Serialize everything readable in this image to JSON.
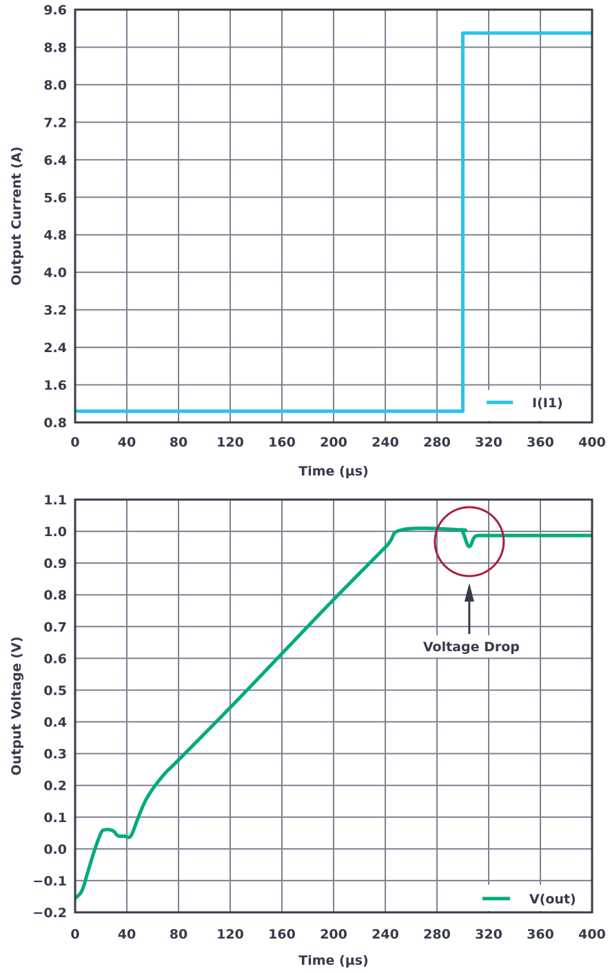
{
  "colors": {
    "axis": "#363a4b",
    "grid": "#7c8192",
    "current": "#29c3ef",
    "voltage": "#00ab7d",
    "highlight": "#a81c45"
  },
  "chart_data": [
    {
      "type": "line",
      "title": "",
      "xlabel": "Time (µs)",
      "ylabel": "Output Current (A)",
      "xlim": [
        0,
        400
      ],
      "ylim": [
        0.8,
        9.6
      ],
      "x_ticks": [
        "0",
        "40",
        "80",
        "120",
        "160",
        "200",
        "240",
        "280",
        "320",
        "360",
        "400"
      ],
      "y_ticks": [
        "0.8",
        "1.6",
        "2.4",
        "3.2",
        "4.0",
        "4.8",
        "5.6",
        "6.4",
        "7.2",
        "8.0",
        "8.8",
        "9.6"
      ],
      "grid": true,
      "legend_position": "lower right",
      "series": [
        {
          "name": "I(I1)",
          "x": [
            0,
            300,
            300,
            400
          ],
          "values": [
            1.04,
            1.04,
            9.1,
            9.1
          ]
        }
      ]
    },
    {
      "type": "line",
      "title": "",
      "xlabel": "Time (µs)",
      "ylabel": "Output Voltage (V)",
      "xlim": [
        0,
        400
      ],
      "ylim": [
        -0.2,
        1.1
      ],
      "x_ticks": [
        "0",
        "40",
        "80",
        "120",
        "160",
        "200",
        "240",
        "280",
        "320",
        "360",
        "400"
      ],
      "y_ticks": [
        "−0.2",
        "−0.1",
        "0.0",
        "0.1",
        "0.2",
        "0.3",
        "0.4",
        "0.5",
        "0.6",
        "0.7",
        "0.8",
        "0.9",
        "1.0",
        "1.1"
      ],
      "grid": true,
      "legend_position": "lower right",
      "annotations": [
        {
          "text": "Voltage Drop",
          "x": 305,
          "y": 0.95,
          "shape": "circle + arrow"
        }
      ],
      "series": [
        {
          "name": "V(out)",
          "x": [
            0,
            3,
            6,
            10,
            15,
            20,
            23,
            27,
            30,
            32,
            34,
            38,
            43,
            48,
            53,
            57,
            62,
            70,
            80,
            120,
            160,
            200,
            240,
            253,
            298,
            300,
            302,
            304,
            306,
            308,
            310,
            314,
            320,
            360,
            400
          ],
          "values": [
            -0.155,
            -0.145,
            -0.125,
            -0.07,
            -0.005,
            0.05,
            0.06,
            0.06,
            0.055,
            0.045,
            0.04,
            0.04,
            0.04,
            0.09,
            0.14,
            0.17,
            0.2,
            0.24,
            0.28,
            0.445,
            0.615,
            0.785,
            0.95,
            1.005,
            1.005,
            0.998,
            0.975,
            0.955,
            0.955,
            0.975,
            0.985,
            0.987,
            0.987,
            0.987,
            0.987
          ]
        }
      ]
    }
  ]
}
